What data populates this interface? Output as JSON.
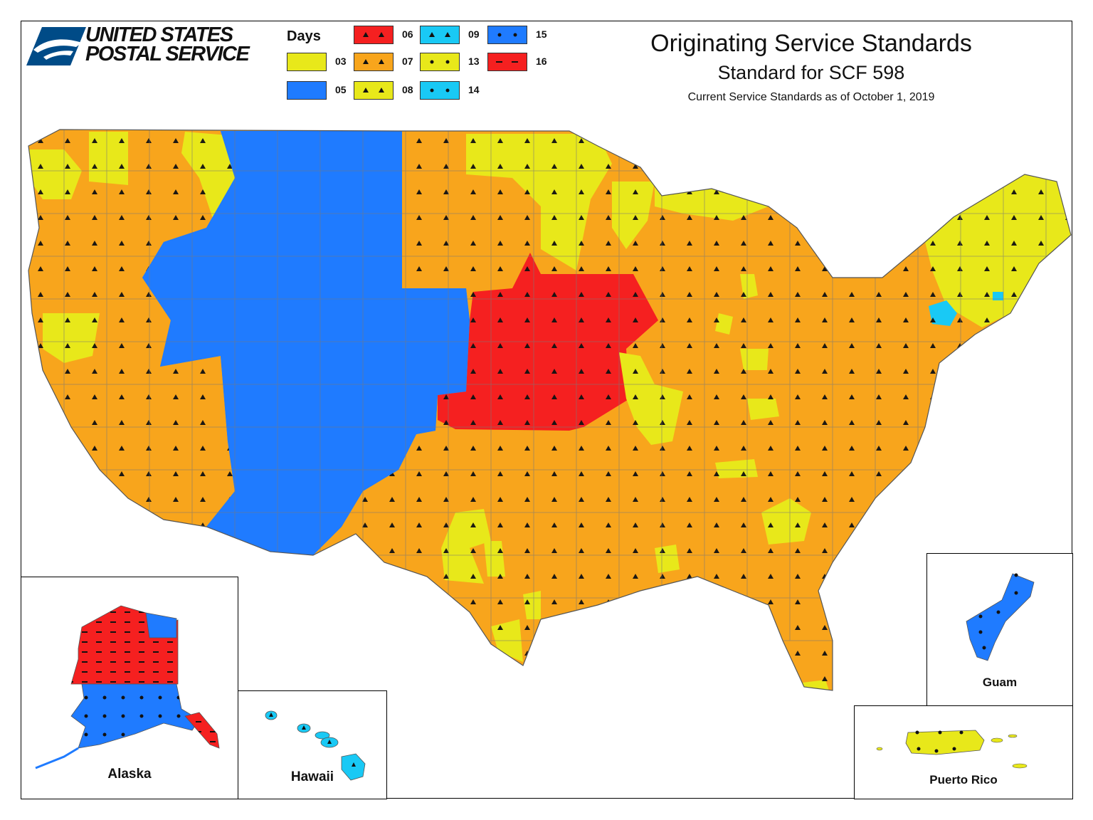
{
  "brand": {
    "line1": "UNITED STATES",
    "line2": "POSTAL SERVICE",
    "color_blue": "#004B87",
    "icon": "eagle-logo-icon"
  },
  "header": {
    "title": "Originating Service Standards",
    "subtitle": "Standard for SCF 598",
    "as_of": "Current Service Standards as of October 1, 2019"
  },
  "legend": {
    "title": "Days",
    "items": [
      {
        "label": "03",
        "color": "#E8E81A",
        "pattern": "none"
      },
      {
        "label": "05",
        "color": "#1F7BFF",
        "pattern": "none"
      },
      {
        "label": "06",
        "color": "#F52020",
        "pattern": "triangles"
      },
      {
        "label": "07",
        "color": "#F8A51C",
        "pattern": "triangles"
      },
      {
        "label": "08",
        "color": "#E8E81A",
        "pattern": "triangles"
      },
      {
        "label": "09",
        "color": "#19C9F5",
        "pattern": "triangles"
      },
      {
        "label": "13",
        "color": "#E8E81A",
        "pattern": "dots"
      },
      {
        "label": "14",
        "color": "#19C9F5",
        "pattern": "dots"
      },
      {
        "label": "15",
        "color": "#1F7BFF",
        "pattern": "dots"
      },
      {
        "label": "16",
        "color": "#F52020",
        "pattern": "dashes"
      }
    ]
  },
  "insets": {
    "alaska": "Alaska",
    "hawaii": "Hawaii",
    "guam": "Guam",
    "puerto_rico": "Puerto Rico"
  },
  "colors": {
    "day07": "#F8A51C",
    "day05": "#1F7BFF",
    "day06": "#F52020",
    "day08": "#E8E81A",
    "day09": "#19C9F5",
    "day16": "#F52020",
    "border": "#7a7a7a"
  }
}
